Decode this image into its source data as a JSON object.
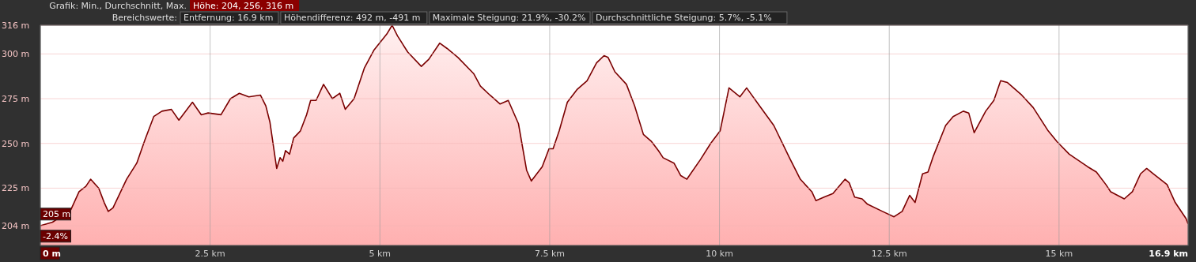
{
  "chart_data": {
    "type": "area",
    "title": "Grafik: Min., Durchschnitt, Max.",
    "subtitle": "Bereichswerte:",
    "annotations": [
      "Höhe: 204, 256, 316 m",
      "Entfernung: 16.9 km",
      "Höhendifferenz: 492 m, -491 m",
      "Maximale Steigung: 21.9%, -30.2%",
      "Durchschnittliche Steigung: 5.7%, -5.1%",
      {
        "text": "205 m",
        "x": 0,
        "y": 205
      },
      {
        "text": "-2.4%",
        "x": 0,
        "y": 205
      }
    ],
    "x": [
      0,
      0.18,
      0.45,
      0.57,
      0.67,
      0.74,
      0.86,
      0.94,
      1.0,
      1.07,
      1.27,
      1.42,
      1.54,
      1.67,
      1.79,
      1.93,
      2.04,
      2.24,
      2.37,
      2.47,
      2.66,
      2.8,
      2.93,
      3.07,
      3.24,
      3.32,
      3.38,
      3.48,
      3.53,
      3.57,
      3.61,
      3.67,
      3.73,
      3.83,
      3.92,
      3.98,
      4.06,
      4.17,
      4.3,
      4.41,
      4.49,
      4.62,
      4.77,
      4.91,
      5.1,
      5.18,
      5.26,
      5.41,
      5.61,
      5.72,
      5.88,
      5.99,
      6.15,
      6.38,
      6.48,
      6.62,
      6.77,
      6.89,
      7.04,
      7.16,
      7.23,
      7.39,
      7.49,
      7.55,
      7.64,
      7.76,
      7.9,
      8.05,
      8.19,
      8.3,
      8.36,
      8.46,
      8.63,
      8.75,
      8.88,
      9.0,
      9.1,
      9.17,
      9.33,
      9.43,
      9.52,
      9.72,
      9.87,
      10.01,
      10.14,
      10.3,
      10.4,
      10.57,
      10.8,
      11.03,
      11.19,
      11.36,
      11.42,
      11.54,
      11.67,
      11.85,
      11.91,
      11.99,
      12.1,
      12.18,
      12.4,
      12.57,
      12.69,
      12.8,
      12.88,
      12.99,
      13.07,
      13.15,
      13.33,
      13.44,
      13.59,
      13.67,
      13.75,
      13.92,
      14.04,
      14.14,
      14.24,
      14.45,
      14.62,
      14.84,
      14.97,
      15.15,
      15.42,
      15.55,
      15.69,
      15.76,
      15.96,
      16.08,
      16.2,
      16.29,
      16.39,
      16.59,
      16.71,
      16.87,
      16.9
    ],
    "series": [
      {
        "color": "#7a0000",
        "values": [
          204,
          206,
          213,
          223,
          226,
          230,
          225,
          217,
          212,
          214,
          230,
          239,
          252,
          265,
          268,
          269,
          263,
          273,
          266,
          267,
          266,
          275,
          278,
          276,
          277,
          271,
          262,
          236,
          242,
          240,
          246,
          244,
          253,
          257,
          266,
          274,
          274,
          283,
          275,
          278,
          269,
          275,
          292,
          302,
          311,
          316,
          310,
          301,
          293,
          297,
          306,
          303,
          298,
          289,
          282,
          277,
          272,
          274,
          261,
          235,
          229,
          237,
          247,
          247,
          257,
          273,
          280,
          285,
          295,
          299,
          298,
          290,
          283,
          271,
          255,
          251,
          246,
          242,
          239,
          232,
          230,
          241,
          250,
          257,
          281,
          276,
          281,
          272,
          260,
          242,
          230,
          223,
          218,
          220,
          222,
          230,
          228,
          220,
          219,
          216,
          212,
          209,
          212,
          221,
          217,
          233,
          234,
          243,
          260,
          265,
          268,
          267,
          256,
          268,
          274,
          285,
          284,
          277,
          270,
          257,
          251,
          244,
          237,
          234,
          227,
          223,
          219,
          223,
          233,
          236,
          233,
          227,
          217,
          208,
          205
        ]
      }
    ],
    "xlim": [
      0,
      16.9
    ],
    "ylim": [
      193,
      316
    ],
    "xticks": [
      {
        "value": 0,
        "label": "0 m"
      },
      {
        "value": 2.5,
        "label": "2.5 km"
      },
      {
        "value": 5,
        "label": "5 km"
      },
      {
        "value": 7.5,
        "label": "7.5 km"
      },
      {
        "value": 10,
        "label": "10 km"
      },
      {
        "value": 12.5,
        "label": "12.5 km"
      },
      {
        "value": 15,
        "label": "15 km"
      },
      {
        "value": 16.9,
        "label": "16.9 km"
      }
    ],
    "yticks": [
      {
        "value": 204,
        "label": "204 m"
      },
      {
        "value": 225,
        "label": "225 m"
      },
      {
        "value": 250,
        "label": "250 m"
      },
      {
        "value": 275,
        "label": "275 m"
      },
      {
        "value": 300,
        "label": "300 m"
      },
      {
        "value": 316,
        "label": "316 m"
      }
    ],
    "grid": true
  }
}
